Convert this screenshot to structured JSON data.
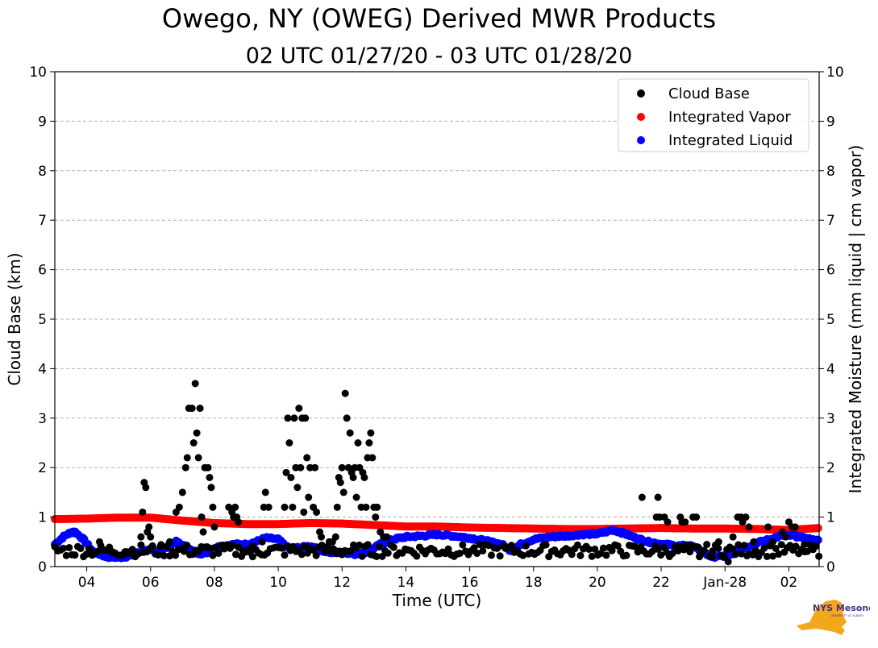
{
  "chart_data": {
    "type": "scatter",
    "title": "Owego, NY (OWEG) Derived MWR Products",
    "subtitle": "02 UTC 01/27/20 - 03 UTC 01/28/20",
    "xlabel": "Time (UTC)",
    "ylabel": "Cloud Base (km)",
    "ylabel_right": "Integrated Moisture (mm liquid | cm vapor)",
    "xlim_hours_utc_from_jan27_0000": [
      3.0,
      26.95
    ],
    "ylim": [
      0,
      10
    ],
    "ylim_right": [
      0,
      10
    ],
    "x_ticks": [
      {
        "hour": 4,
        "label": "04"
      },
      {
        "hour": 6,
        "label": "06"
      },
      {
        "hour": 8,
        "label": "08"
      },
      {
        "hour": 10,
        "label": "10"
      },
      {
        "hour": 12,
        "label": "12"
      },
      {
        "hour": 14,
        "label": "14"
      },
      {
        "hour": 16,
        "label": "16"
      },
      {
        "hour": 18,
        "label": "18"
      },
      {
        "hour": 20,
        "label": "20"
      },
      {
        "hour": 22,
        "label": "22"
      },
      {
        "hour": 24,
        "label": "Jan-28"
      },
      {
        "hour": 26,
        "label": "02"
      }
    ],
    "y_ticks": [
      0,
      1,
      2,
      3,
      4,
      5,
      6,
      7,
      8,
      9,
      10
    ],
    "grid": "horizontal dashed",
    "legend_position": "top-right",
    "colors": {
      "cloud_base": "#000000",
      "vapor": "#ff0000",
      "liquid": "#0000ff"
    },
    "series": [
      {
        "name": "Cloud Base",
        "color": "#000000",
        "points": [
          [
            5.8,
            1.7
          ],
          [
            5.85,
            1.6
          ],
          [
            5.75,
            1.1
          ],
          [
            5.95,
            0.8
          ],
          [
            5.9,
            0.7
          ],
          [
            6.0,
            0.6
          ],
          [
            5.7,
            0.6
          ],
          [
            6.8,
            1.1
          ],
          [
            6.9,
            1.2
          ],
          [
            7.0,
            1.5
          ],
          [
            7.1,
            2.0
          ],
          [
            7.15,
            2.2
          ],
          [
            7.2,
            3.2
          ],
          [
            7.3,
            3.2
          ],
          [
            7.35,
            2.5
          ],
          [
            7.4,
            3.7
          ],
          [
            7.45,
            2.7
          ],
          [
            7.5,
            2.2
          ],
          [
            7.55,
            3.2
          ],
          [
            7.6,
            1.0
          ],
          [
            7.65,
            0.7
          ],
          [
            7.7,
            2.0
          ],
          [
            7.8,
            2.0
          ],
          [
            7.85,
            1.8
          ],
          [
            7.9,
            1.6
          ],
          [
            7.95,
            1.2
          ],
          [
            8.0,
            0.8
          ],
          [
            8.45,
            1.2
          ],
          [
            8.55,
            1.1
          ],
          [
            8.6,
            1.0
          ],
          [
            8.65,
            1.2
          ],
          [
            8.7,
            1.0
          ],
          [
            8.75,
            0.9
          ],
          [
            9.55,
            1.2
          ],
          [
            9.6,
            1.5
          ],
          [
            9.7,
            1.2
          ],
          [
            10.2,
            1.2
          ],
          [
            10.25,
            1.9
          ],
          [
            10.3,
            3.0
          ],
          [
            10.35,
            2.5
          ],
          [
            10.4,
            1.8
          ],
          [
            10.45,
            1.2
          ],
          [
            10.5,
            3.0
          ],
          [
            10.55,
            2.0
          ],
          [
            10.6,
            1.6
          ],
          [
            10.65,
            3.2
          ],
          [
            10.7,
            2.0
          ],
          [
            10.75,
            3.0
          ],
          [
            10.8,
            1.1
          ],
          [
            10.85,
            3.0
          ],
          [
            10.9,
            2.2
          ],
          [
            10.95,
            1.4
          ],
          [
            11.0,
            2.0
          ],
          [
            11.1,
            1.2
          ],
          [
            11.15,
            2.0
          ],
          [
            11.2,
            1.1
          ],
          [
            11.3,
            0.7
          ],
          [
            11.35,
            0.6
          ],
          [
            11.7,
            0.5
          ],
          [
            11.8,
            0.6
          ],
          [
            11.85,
            1.2
          ],
          [
            11.9,
            1.8
          ],
          [
            11.95,
            1.7
          ],
          [
            12.0,
            2.0
          ],
          [
            12.05,
            1.5
          ],
          [
            12.1,
            3.5
          ],
          [
            12.15,
            3.0
          ],
          [
            12.2,
            2.0
          ],
          [
            12.25,
            2.7
          ],
          [
            12.3,
            1.9
          ],
          [
            12.35,
            1.8
          ],
          [
            12.4,
            2.0
          ],
          [
            12.45,
            1.4
          ],
          [
            12.5,
            2.5
          ],
          [
            12.55,
            2.0
          ],
          [
            12.6,
            1.2
          ],
          [
            12.65,
            1.9
          ],
          [
            12.7,
            1.8
          ],
          [
            12.75,
            1.2
          ],
          [
            12.8,
            2.2
          ],
          [
            12.85,
            2.5
          ],
          [
            12.9,
            2.7
          ],
          [
            12.95,
            2.2
          ],
          [
            13.0,
            1.2
          ],
          [
            13.05,
            1.0
          ],
          [
            13.1,
            1.2
          ],
          [
            13.2,
            0.7
          ],
          [
            13.3,
            0.6
          ],
          [
            21.4,
            1.4
          ],
          [
            21.85,
            1.0
          ],
          [
            21.9,
            1.4
          ],
          [
            21.95,
            1.0
          ],
          [
            22.1,
            1.0
          ],
          [
            22.2,
            0.9
          ],
          [
            22.6,
            1.0
          ],
          [
            22.65,
            0.9
          ],
          [
            22.75,
            0.9
          ],
          [
            23.0,
            1.0
          ],
          [
            23.1,
            1.0
          ],
          [
            24.25,
            0.6
          ],
          [
            24.4,
            1.0
          ],
          [
            24.5,
            1.0
          ],
          [
            24.55,
            0.9
          ],
          [
            24.65,
            1.0
          ],
          [
            24.75,
            0.8
          ],
          [
            25.35,
            0.8
          ],
          [
            25.8,
            0.7
          ],
          [
            25.9,
            0.6
          ],
          [
            26.0,
            0.9
          ],
          [
            26.1,
            0.8
          ],
          [
            26.2,
            0.8
          ],
          [
            4.4,
            0.5
          ],
          [
            4.8,
            0.3
          ],
          [
            5.2,
            0.3
          ],
          [
            5.35,
            0.3
          ],
          [
            6.3,
            0.4
          ],
          [
            6.6,
            0.5
          ],
          [
            8.9,
            0.3
          ],
          [
            9.2,
            0.2
          ],
          [
            9.5,
            0.5
          ],
          [
            11.6,
            0.5
          ],
          [
            13.4,
            0.6
          ],
          [
            22.9,
            0.3
          ],
          [
            23.2,
            0.2
          ],
          [
            23.6,
            0.2
          ],
          [
            23.8,
            0.5
          ],
          [
            24.1,
            0.1
          ],
          [
            24.9,
            0.5
          ],
          [
            25.5,
            0.5
          ],
          [
            26.5,
            0.3
          ]
        ],
        "baseline": {
          "from": 3.0,
          "to": 26.95,
          "min": 0.2,
          "max": 0.45,
          "note": "dense near-surface cloud base returns"
        }
      },
      {
        "name": "Integrated Vapor",
        "color": "#ff0000",
        "values_at_hours": [
          [
            3.0,
            0.96
          ],
          [
            4.0,
            0.97
          ],
          [
            5.0,
            0.99
          ],
          [
            6.0,
            0.99
          ],
          [
            7.0,
            0.93
          ],
          [
            8.0,
            0.88
          ],
          [
            9.0,
            0.86
          ],
          [
            10.0,
            0.86
          ],
          [
            11.0,
            0.88
          ],
          [
            12.0,
            0.87
          ],
          [
            13.0,
            0.84
          ],
          [
            14.0,
            0.81
          ],
          [
            15.0,
            0.81
          ],
          [
            16.0,
            0.79
          ],
          [
            17.0,
            0.78
          ],
          [
            18.0,
            0.77
          ],
          [
            19.0,
            0.76
          ],
          [
            20.0,
            0.76
          ],
          [
            21.0,
            0.77
          ],
          [
            22.0,
            0.78
          ],
          [
            23.0,
            0.77
          ],
          [
            24.0,
            0.77
          ],
          [
            25.0,
            0.76
          ],
          [
            26.0,
            0.74
          ],
          [
            26.95,
            0.78
          ]
        ]
      },
      {
        "name": "Integrated Liquid",
        "color": "#0000ff",
        "values_at_hours": [
          [
            3.0,
            0.45
          ],
          [
            3.3,
            0.62
          ],
          [
            3.6,
            0.72
          ],
          [
            3.9,
            0.55
          ],
          [
            4.2,
            0.3
          ],
          [
            4.6,
            0.2
          ],
          [
            5.0,
            0.18
          ],
          [
            5.4,
            0.22
          ],
          [
            5.8,
            0.33
          ],
          [
            6.2,
            0.3
          ],
          [
            6.5,
            0.38
          ],
          [
            6.8,
            0.5
          ],
          [
            7.1,
            0.4
          ],
          [
            7.4,
            0.28
          ],
          [
            7.7,
            0.26
          ],
          [
            8.0,
            0.38
          ],
          [
            8.3,
            0.42
          ],
          [
            8.6,
            0.45
          ],
          [
            9.0,
            0.45
          ],
          [
            9.3,
            0.5
          ],
          [
            9.6,
            0.58
          ],
          [
            10.0,
            0.55
          ],
          [
            10.3,
            0.38
          ],
          [
            10.7,
            0.38
          ],
          [
            11.0,
            0.42
          ],
          [
            11.3,
            0.33
          ],
          [
            11.6,
            0.28
          ],
          [
            12.0,
            0.3
          ],
          [
            12.4,
            0.25
          ],
          [
            12.8,
            0.3
          ],
          [
            13.2,
            0.45
          ],
          [
            13.6,
            0.55
          ],
          [
            14.0,
            0.6
          ],
          [
            14.5,
            0.62
          ],
          [
            15.0,
            0.65
          ],
          [
            15.5,
            0.62
          ],
          [
            16.0,
            0.58
          ],
          [
            16.5,
            0.52
          ],
          [
            17.0,
            0.45
          ],
          [
            17.3,
            0.32
          ],
          [
            17.6,
            0.45
          ],
          [
            18.0,
            0.55
          ],
          [
            18.5,
            0.6
          ],
          [
            19.0,
            0.62
          ],
          [
            19.5,
            0.65
          ],
          [
            20.0,
            0.66
          ],
          [
            20.5,
            0.74
          ],
          [
            20.8,
            0.68
          ],
          [
            21.2,
            0.58
          ],
          [
            21.6,
            0.5
          ],
          [
            22.0,
            0.46
          ],
          [
            22.5,
            0.42
          ],
          [
            23.0,
            0.42
          ],
          [
            23.3,
            0.3
          ],
          [
            23.6,
            0.18
          ],
          [
            24.0,
            0.22
          ],
          [
            24.2,
            0.25
          ],
          [
            24.4,
            0.32
          ],
          [
            24.7,
            0.4
          ],
          [
            25.0,
            0.48
          ],
          [
            25.4,
            0.55
          ],
          [
            25.8,
            0.63
          ],
          [
            26.2,
            0.62
          ],
          [
            26.6,
            0.56
          ],
          [
            26.95,
            0.52
          ]
        ]
      }
    ]
  },
  "logo": {
    "text": "NYS Mesonet",
    "subtext": "UNIVERSITY AT ALBANY",
    "fill": "#f3a71b",
    "text_color": "#4b2e83"
  }
}
